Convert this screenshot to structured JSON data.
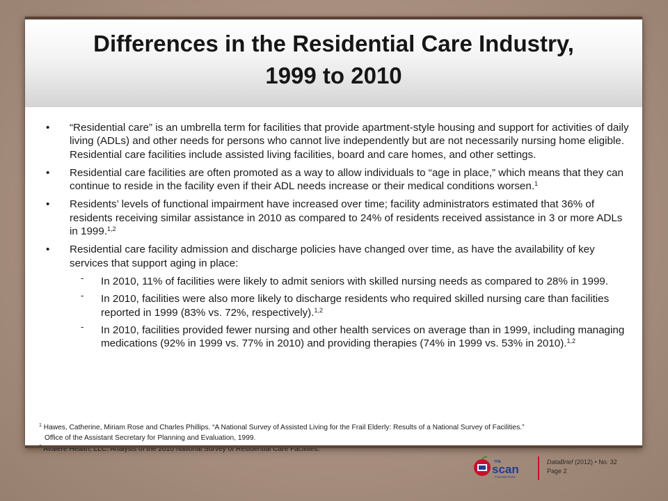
{
  "title": {
    "line1": "Differences in the Residential Care Industry,",
    "line2": "1999 to 2010"
  },
  "bullets": [
    {
      "text": "“Residential care” is an umbrella term for facilities that provide apartment-style housing and support for activities of daily living  (ADLs) and other needs for persons who cannot live independently but are not necessarily nursing home eligible. Residential care facilities include assisted living facilities, board and care homes, and other settings.",
      "sup": ""
    },
    {
      "text": "Residential care facilities are often promoted as a way to allow individuals to “age in place,” which means that they can continue to reside in the facility even if their ADL needs increase or their medical conditions worsen.",
      "sup": "1"
    },
    {
      "text": "Residents’ levels of functional impairment have increased over time; facility administrators estimated that 36% of residents receiving similar assistance in 2010 as compared to 24% of residents received assistance in 3 or more ADLs in 1999.",
      "sup": "1,2"
    },
    {
      "text": "Residential care facility admission and discharge policies have changed over time, as have the availability of key services that support aging in place:",
      "sup": ""
    }
  ],
  "subbullets": [
    {
      "text": "In 2010, 11% of facilities were likely to admit seniors with skilled nursing needs as compared to 28% in 1999.",
      "sup": ""
    },
    {
      "text": "In 2010, facilities were also more likely to discharge residents who required skilled nursing care than facilities reported in 1999 (83% vs. 72%, respectively).",
      "sup": "1,2"
    },
    {
      "text": "In 2010, facilities provided fewer nursing and other health services on average than in 1999, including managing medications (92% in 1999 vs. 77% in 2010) and providing therapies (74% in 1999 vs. 53% in 2010).",
      "sup": "1,2"
    }
  ],
  "bullet_symbol": "•",
  "subbullet_symbol": "-",
  "footnotes": {
    "f1_num": "1",
    "f1_line1": "Hawes, Catherine, Miriam Rose and Charles Phillips. “A National Survey of Assisted Living for the Frail Elderly: Results of a National Survey of Facilities.”",
    "f1_line2": "Office of the Assistant Secretary for Planning and Evaluation, 1999.",
    "f2_num": "2",
    "f2_line1": "Avalere Health, LLC. Analysis of the 2010 National Survey of Residential Care Facilities."
  },
  "footer": {
    "logo_the": "THE",
    "logo_scan": "scan",
    "logo_foundation": "FOUNDATION",
    "databrief": "DataBrief",
    "year_no": " (2012) • No. 32",
    "page": "Page 2"
  },
  "colors": {
    "background": "#a88f80",
    "title_bar": "#5a4336",
    "logo_red": "#c8102e",
    "logo_blue": "#1f3f8f"
  }
}
